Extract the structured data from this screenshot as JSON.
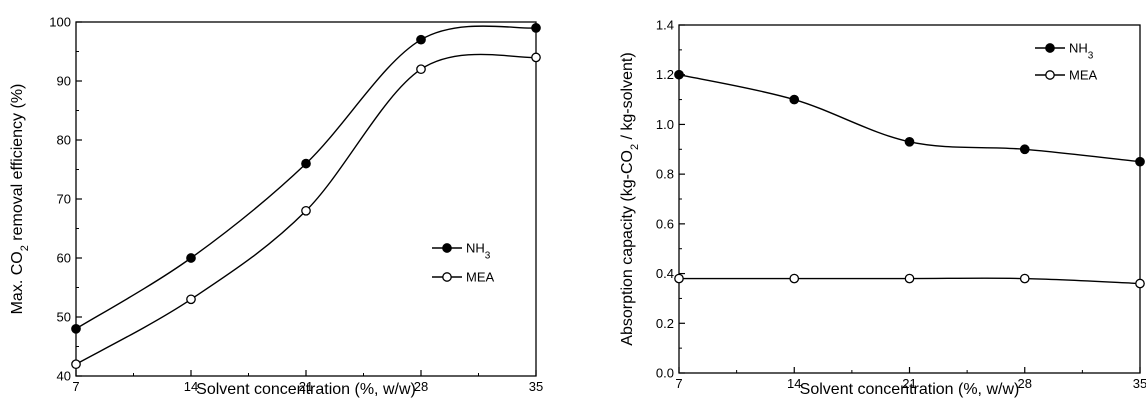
{
  "chart_data": [
    {
      "type": "line",
      "title": "",
      "xlabel": "Solvent concentration (%, w/w)",
      "ylabel": {
        "pre": "Max. CO",
        "sub": "2",
        "post": " removal efficiency (%)"
      },
      "x": [
        7,
        14,
        21,
        28,
        35
      ],
      "xticks": [
        "7",
        "14",
        "21",
        "28",
        "35"
      ],
      "xlim": [
        7,
        35
      ],
      "ylim": [
        40,
        100
      ],
      "yticks": [
        "40",
        "50",
        "60",
        "70",
        "80",
        "90",
        "100"
      ],
      "grid": false,
      "legend_position": "lower-right",
      "series": [
        {
          "name": {
            "main": "NH",
            "sub": "3"
          },
          "marker": "filled-circle",
          "values": [
            48,
            60,
            76,
            97,
            99
          ]
        },
        {
          "name": {
            "main": "MEA",
            "sub": ""
          },
          "marker": "open-circle",
          "values": [
            42,
            53,
            68,
            92,
            94
          ]
        }
      ]
    },
    {
      "type": "line",
      "title": "",
      "xlabel": "Solvent concentration (%, w/w)",
      "ylabel": {
        "pre": "Absorption capacity (kg-CO",
        "sub": "2",
        "post": " / kg-solvent)"
      },
      "x": [
        7,
        14,
        21,
        28,
        35
      ],
      "xticks": [
        "7",
        "14",
        "21",
        "28",
        "35"
      ],
      "xlim": [
        7,
        35
      ],
      "ylim": [
        0,
        1.4
      ],
      "yticks": [
        "0.0",
        "0.2",
        "0.4",
        "0.6",
        "0.8",
        "1.0",
        "1.2",
        "1.4"
      ],
      "grid": false,
      "legend_position": "top-right",
      "series": [
        {
          "name": {
            "main": "NH",
            "sub": "3"
          },
          "marker": "filled-circle",
          "values": [
            1.2,
            1.1,
            0.93,
            0.9,
            0.85
          ]
        },
        {
          "name": {
            "main": "MEA",
            "sub": ""
          },
          "marker": "open-circle",
          "values": [
            0.38,
            0.38,
            0.38,
            0.38,
            0.36
          ]
        }
      ]
    }
  ]
}
